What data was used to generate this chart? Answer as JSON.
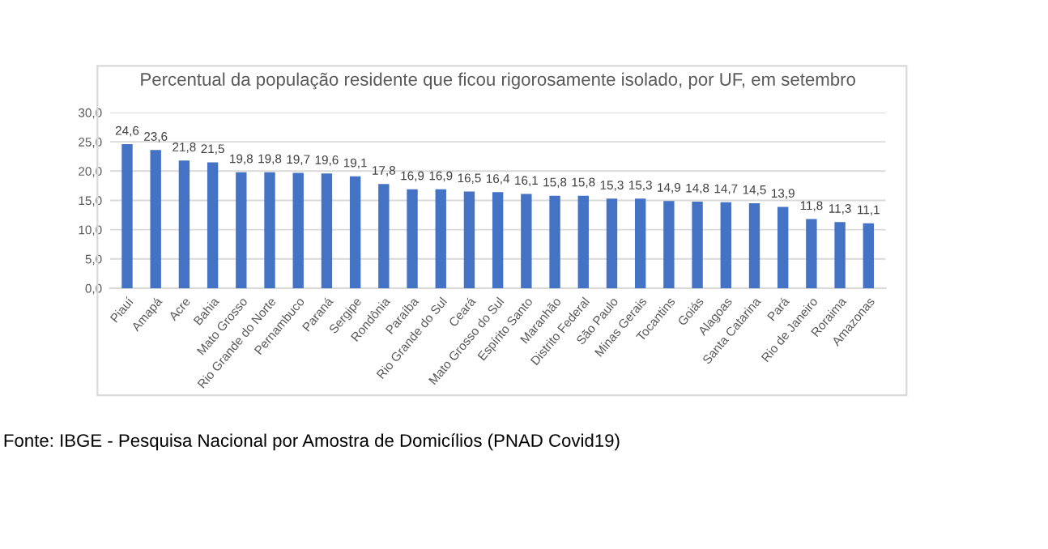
{
  "chart_data": {
    "type": "bar",
    "title": "Percentual da população residente que ficou rigorosamente isolado, por UF, em setembro",
    "categories": [
      "Piauí",
      "Amapá",
      "Acre",
      "Bahia",
      "Mato Grosso",
      "Rio Grande do Norte",
      "Pernambuco",
      "Paraná",
      "Sergipe",
      "Rondônia",
      "Paraíba",
      "Rio Grande do Sul",
      "Ceará",
      "Mato Grosso do Sul",
      "Espírito Santo",
      "Maranhão",
      "Distrito Federal",
      "São Paulo",
      "Minas Gerais",
      "Tocantins",
      "Goiás",
      "Alagoas",
      "Santa Catarina",
      "Pará",
      "Rio de Janeiro",
      "Roraima",
      "Amazonas"
    ],
    "values": [
      24.6,
      23.6,
      21.8,
      21.5,
      19.8,
      19.8,
      19.7,
      19.6,
      19.1,
      17.8,
      16.9,
      16.9,
      16.5,
      16.4,
      16.1,
      15.8,
      15.8,
      15.3,
      15.3,
      14.9,
      14.8,
      14.7,
      14.5,
      13.9,
      11.8,
      11.3,
      11.1
    ],
    "value_labels": [
      "24,6",
      "23,6",
      "21,8",
      "21,5",
      "19,8",
      "19,8",
      "19,7",
      "19,6",
      "19,1",
      "17,8",
      "16,9",
      "16,9",
      "16,5",
      "16,4",
      "16,1",
      "15,8",
      "15,8",
      "15,3",
      "15,3",
      "14,9",
      "14,8",
      "14,7",
      "14,5",
      "13,9",
      "11,8",
      "11,3",
      "11,1"
    ],
    "color": "#4472c4",
    "ylim": [
      0,
      30
    ],
    "yticks": [
      {
        "value": 0,
        "label": "0,0"
      },
      {
        "value": 5,
        "label": "5,0"
      },
      {
        "value": 10,
        "label": "10,0"
      },
      {
        "value": 15,
        "label": "15,0"
      },
      {
        "value": 20,
        "label": "20,0"
      },
      {
        "value": 25,
        "label": "25,0"
      },
      {
        "value": 30,
        "label": "30,0"
      }
    ],
    "grid": "y",
    "annotations": [
      "Fonte: IBGE - Pesquisa Nacional por Amostra de Domicílios (PNAD Covid19)"
    ]
  }
}
